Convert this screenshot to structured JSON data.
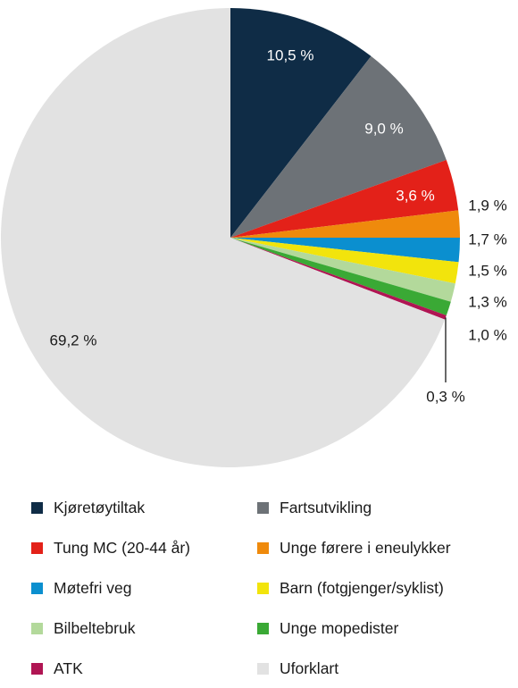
{
  "chart_data": {
    "type": "pie",
    "title": "",
    "slices": [
      {
        "label": "Kjøretøytiltak",
        "value": 10.5,
        "display": "10,5 %",
        "color": "#0f2c46"
      },
      {
        "label": "Fartsutvikling",
        "value": 9.0,
        "display": "9,0 %",
        "color": "#6d7277"
      },
      {
        "label": "Tung MC (20-44 år)",
        "value": 3.6,
        "display": "3,6 %",
        "color": "#e32119"
      },
      {
        "label": "Unge førere i eneulykker",
        "value": 1.9,
        "display": "1,9 %",
        "color": "#ef8a0c"
      },
      {
        "label": "Møtefri veg",
        "value": 1.7,
        "display": "1,7 %",
        "color": "#0b8fcf"
      },
      {
        "label": "Barn (fotgjenger/syklist)",
        "value": 1.5,
        "display": "1,5 %",
        "color": "#f2e40c"
      },
      {
        "label": "Bilbeltebruk",
        "value": 1.3,
        "display": "1,3 %",
        "color": "#b3d99b"
      },
      {
        "label": "Unge mopedister",
        "value": 1.0,
        "display": "1,0 %",
        "color": "#3aa935"
      },
      {
        "label": "ATK",
        "value": 0.3,
        "display": "0,3 %",
        "color": "#b01553"
      },
      {
        "label": "Uforklart",
        "value": 69.2,
        "display": "69,2 %",
        "color": "#e2e2e2"
      }
    ],
    "start_angle": "12 o'clock",
    "direction": "clockwise",
    "legend_position": "bottom"
  }
}
